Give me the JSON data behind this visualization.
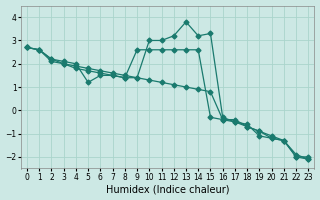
{
  "xlabel": "Humidex (Indice chaleur)",
  "ylabel": "",
  "bg_color": "#cce8e4",
  "grid_color": "#aad4cc",
  "line_color": "#1a7a6e",
  "xlim": [
    -0.5,
    23.5
  ],
  "ylim": [
    -2.5,
    4.5
  ],
  "xticks": [
    0,
    1,
    2,
    3,
    4,
    5,
    6,
    7,
    8,
    9,
    10,
    11,
    12,
    13,
    14,
    15,
    16,
    17,
    18,
    19,
    20,
    21,
    22,
    23
  ],
  "yticks": [
    -2,
    -1,
    0,
    1,
    2,
    3,
    4
  ],
  "series1_x": [
    0,
    1,
    2,
    3,
    4,
    5,
    6,
    7,
    8,
    9,
    10,
    11,
    12,
    13,
    14,
    15,
    16,
    17,
    18,
    19,
    20,
    21,
    22,
    23
  ],
  "series1_y": [
    2.7,
    2.6,
    2.2,
    2.1,
    2.0,
    1.2,
    1.5,
    1.5,
    1.4,
    1.4,
    3.0,
    3.0,
    3.2,
    3.8,
    3.2,
    3.3,
    -0.3,
    -0.5,
    -0.6,
    -1.1,
    -1.2,
    -1.3,
    -2.0,
    -2.1
  ],
  "series2_x": [
    0,
    1,
    2,
    3,
    4,
    5,
    6,
    7,
    8,
    9,
    10,
    11,
    12,
    13,
    14,
    15,
    16,
    17,
    18,
    19,
    20,
    21,
    22,
    23
  ],
  "series2_y": [
    2.7,
    2.6,
    2.1,
    2.0,
    1.9,
    1.8,
    1.7,
    1.6,
    1.5,
    1.4,
    1.3,
    1.2,
    1.1,
    1.0,
    0.9,
    0.8,
    -0.4,
    -0.5,
    -0.7,
    -0.9,
    -1.1,
    -1.3,
    -1.9,
    -2.1
  ],
  "series3_x": [
    0,
    1,
    2,
    3,
    4,
    5,
    6,
    7,
    8,
    9,
    10,
    11,
    12,
    13,
    14,
    15,
    16,
    17,
    18,
    19,
    20,
    21,
    22,
    23
  ],
  "series3_y": [
    2.7,
    2.6,
    2.2,
    2.0,
    1.8,
    1.7,
    1.6,
    1.5,
    1.4,
    2.6,
    2.6,
    2.6,
    2.6,
    2.6,
    2.6,
    -0.3,
    -0.4,
    -0.4,
    -0.7,
    -0.9,
    -1.2,
    -1.3,
    -2.0,
    -2.0
  ]
}
